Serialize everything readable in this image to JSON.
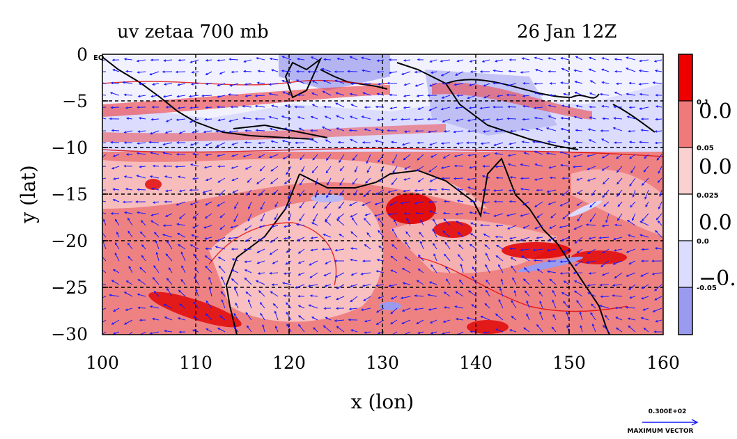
{
  "title_left": "uv zetaa 700 mb",
  "title_right": "26 Jan 12Z",
  "xlabel": "x (lon)",
  "ylabel": "y (lat)",
  "eq_label": "EQ",
  "xticks": [
    "100",
    "110",
    "120",
    "130",
    "140",
    "150",
    "160"
  ],
  "yticks": [
    "0",
    "−5",
    "−10",
    "−15",
    "−20",
    "−25",
    "−30"
  ],
  "colorbar": {
    "colors": [
      "#ee0000",
      "#f07a7a",
      "#fad0d0",
      "#ffffff",
      "#dcdcff",
      "#9a9aee"
    ],
    "small_labels": [
      "0.1",
      "0.05",
      "0.025",
      "0.0",
      "-0.05"
    ],
    "big_labels": [
      "0.0",
      "0.0",
      "0.0",
      "−0."
    ]
  },
  "vector_ref": {
    "value": "0.300E+02",
    "caption": "MAXIMUM VECTOR"
  },
  "chart_data": {
    "type": "heatmap",
    "title": "uv zetaa 700 mb",
    "time": "26 Jan 12Z",
    "xlabel": "x (lon)",
    "ylabel": "y (lat)",
    "xlim": [
      100,
      160
    ],
    "ylim": [
      -30,
      0
    ],
    "grid": true,
    "legend": "right colorbar",
    "contour_levels": [
      -0.05,
      0.0,
      0.025,
      0.05,
      0.1
    ]
  }
}
